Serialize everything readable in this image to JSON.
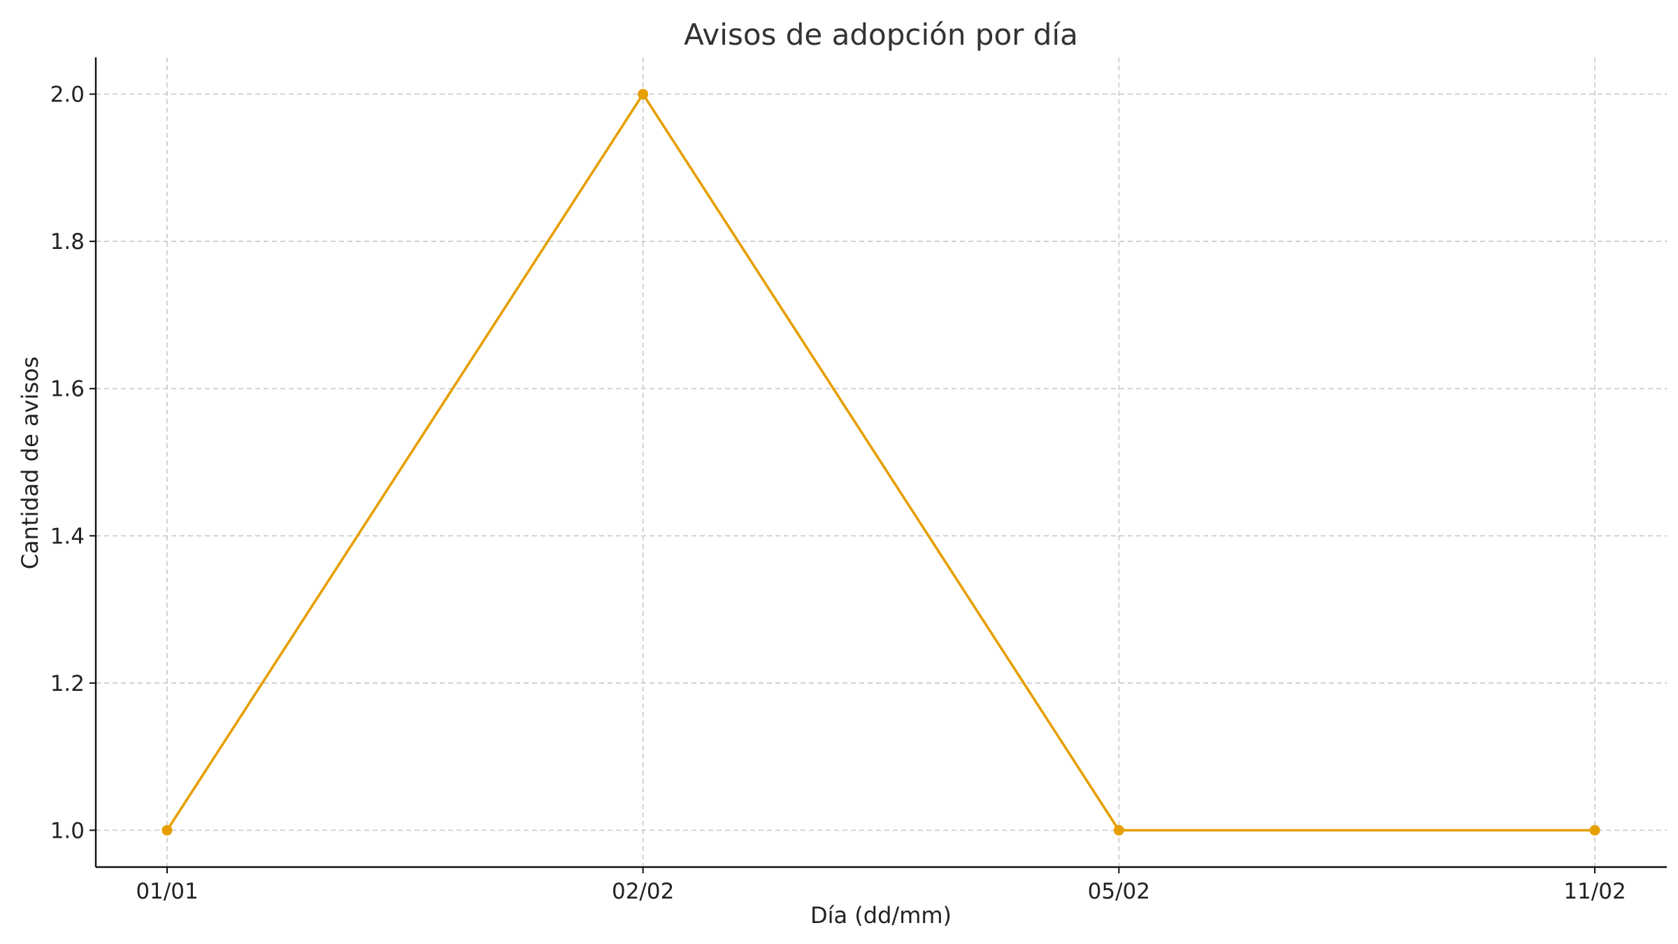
{
  "chart_data": {
    "type": "line",
    "title": "Avisos de adopción por día",
    "xlabel": "Día (dd/mm)",
    "ylabel": "Cantidad de avisos",
    "categories": [
      "01/01",
      "02/02",
      "05/02",
      "11/02"
    ],
    "series": [
      {
        "values": [
          1,
          2,
          1,
          1
        ],
        "color": "#E69F00"
      }
    ],
    "ylim": [
      0.95,
      2.05
    ],
    "yticks": [
      "1.0",
      "1.2",
      "1.4",
      "1.6",
      "1.8",
      "2.0"
    ],
    "grid": true,
    "legend": "none"
  }
}
